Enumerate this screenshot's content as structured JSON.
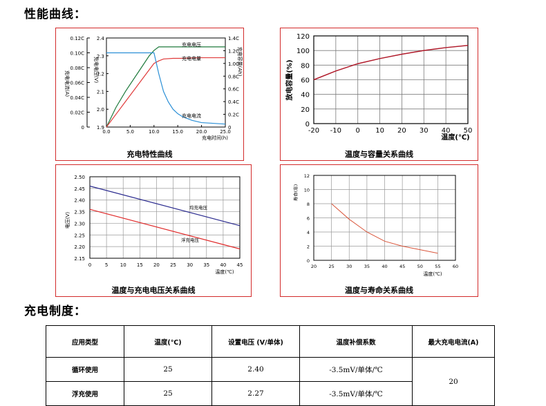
{
  "headings": {
    "curves": "性能曲线：",
    "regime": "充电制度："
  },
  "colors": {
    "border": "#d22a2a",
    "voltage": "#1e7a3c",
    "capacity": "#e03a3a",
    "current": "#2a8fd6",
    "blue_line": "#2b2b8f",
    "red_line": "#e02a2a",
    "life": "#d9553a"
  },
  "chart_data": [
    {
      "id": "charge",
      "type": "line",
      "title": "充电特性曲线",
      "xlabel": "充电时间(h)",
      "xlim": [
        0,
        25
      ],
      "xticks": [
        "0.0",
        "5.0",
        "10.0",
        "15.0",
        "20.0",
        "25.0"
      ],
      "xtick_values": [
        0,
        5,
        10,
        15,
        20,
        25
      ],
      "axes": [
        {
          "side": "left-outer",
          "label": "充电电流(A)",
          "ticks": [
            "0",
            "0.02C",
            "0.04C",
            "0.06C",
            "0.08C",
            "0.10C",
            "0.12C"
          ],
          "lim": [
            0,
            0.12
          ]
        },
        {
          "side": "left-inner",
          "label": "充电电压(V)",
          "ticks": [
            "1.9",
            "2.0",
            "2.1",
            "2.2",
            "2.3",
            "2.4"
          ],
          "lim": [
            1.9,
            2.4
          ]
        },
        {
          "side": "right",
          "label": "充电容量(Ah)",
          "ticks": [
            "0",
            "0.2C",
            "0.4C",
            "0.6C",
            "0.8C",
            "1.0C",
            "1.2C",
            "1.4C"
          ],
          "lim": [
            0,
            1.4
          ]
        }
      ],
      "series": [
        {
          "name": "充电电压",
          "axis": "V",
          "x": [
            0,
            2,
            4,
            6,
            8,
            9,
            10,
            11,
            15,
            20,
            25
          ],
          "y": [
            1.9,
            2.01,
            2.1,
            2.18,
            2.26,
            2.3,
            2.33,
            2.35,
            2.35,
            2.35,
            2.35
          ]
        },
        {
          "name": "充电电量",
          "axis": "Ah",
          "x": [
            0,
            2,
            4,
            6,
            8,
            10,
            11,
            12,
            14,
            16,
            20,
            25
          ],
          "y": [
            0.0,
            0.2,
            0.4,
            0.6,
            0.8,
            1.0,
            1.04,
            1.07,
            1.08,
            1.08,
            1.09,
            1.09
          ]
        },
        {
          "name": "充电电流",
          "axis": "A",
          "x": [
            0,
            9,
            10,
            11,
            12,
            13,
            14,
            15,
            16,
            18,
            20,
            25
          ],
          "y": [
            0.1,
            0.1,
            0.1,
            0.072,
            0.048,
            0.034,
            0.024,
            0.018,
            0.014,
            0.009,
            0.006,
            0.004
          ]
        }
      ],
      "legend": "inline labels"
    },
    {
      "id": "capacity",
      "type": "line",
      "title": "温度与容量关系曲线",
      "xlabel": "温度(℃)",
      "ylabel": "放电容量(%)",
      "xlim": [
        -20,
        50
      ],
      "ylim": [
        0,
        120
      ],
      "xticks": [
        "-20",
        "-10",
        "0",
        "10",
        "20",
        "30",
        "40",
        "50"
      ],
      "xtick_values": [
        -20,
        -10,
        0,
        10,
        20,
        30,
        40,
        50
      ],
      "yticks": [
        "0",
        "20",
        "40",
        "60",
        "80",
        "100",
        "120"
      ],
      "ytick_values": [
        0,
        20,
        40,
        60,
        80,
        100,
        120
      ],
      "series": [
        {
          "x": [
            -20,
            -10,
            0,
            10,
            20,
            30,
            40,
            50
          ],
          "y": [
            60,
            72,
            82,
            89,
            95,
            100,
            104,
            107
          ]
        }
      ]
    },
    {
      "id": "voltage",
      "type": "line",
      "title": "温度与充电电压关系曲线",
      "xlabel": "温度(℃)",
      "ylabel": "电压(V)",
      "xlim": [
        0,
        45
      ],
      "ylim": [
        2.15,
        2.5
      ],
      "xticks": [
        "0",
        "5",
        "10",
        "15",
        "20",
        "25",
        "30",
        "35",
        "40",
        "45"
      ],
      "xtick_values": [
        0,
        5,
        10,
        15,
        20,
        25,
        30,
        35,
        40,
        45
      ],
      "yticks": [
        "2.15",
        "2.20",
        "2.25",
        "2.30",
        "2.35",
        "2.40",
        "2.45",
        "2.50"
      ],
      "ytick_values": [
        2.15,
        2.2,
        2.25,
        2.3,
        2.35,
        2.4,
        2.45,
        2.5
      ],
      "series": [
        {
          "name": "均充电压",
          "x": [
            0,
            45
          ],
          "y": [
            2.46,
            2.29
          ]
        },
        {
          "name": "浮充电压",
          "x": [
            0,
            45
          ],
          "y": [
            2.36,
            2.19
          ]
        }
      ]
    },
    {
      "id": "life",
      "type": "line",
      "title": "温度与寿命关系曲线",
      "xlabel": "温度(℃)",
      "ylabel": "寿命(年)",
      "xlim": [
        20,
        60
      ],
      "ylim": [
        0,
        12
      ],
      "xticks": [
        "20",
        "25",
        "30",
        "35",
        "40",
        "45",
        "50",
        "55",
        "60"
      ],
      "xtick_values": [
        20,
        25,
        30,
        35,
        40,
        45,
        50,
        55,
        60
      ],
      "yticks": [
        "0",
        "2",
        "4",
        "6",
        "8",
        "10",
        "12"
      ],
      "ytick_values": [
        0,
        2,
        4,
        6,
        8,
        10,
        12
      ],
      "series": [
        {
          "x": [
            25,
            30,
            35,
            40,
            45,
            50,
            55
          ],
          "y": [
            8,
            5.8,
            4,
            2.7,
            2,
            1.5,
            1
          ]
        }
      ]
    }
  ],
  "table": {
    "headers": [
      "应用类型",
      "温度(℃)",
      "设置电压 (V/单体)",
      "温度补偿系数",
      "最大充电电流(A)"
    ],
    "rows": [
      {
        "type": "循环使用",
        "temp": "25",
        "voltage": "2.40",
        "coef": "-3.5mV/单体/℃"
      },
      {
        "type": "浮充使用",
        "temp": "25",
        "voltage": "2.27",
        "coef": "-3.5mV/单体/℃"
      }
    ],
    "max_current": "20"
  }
}
